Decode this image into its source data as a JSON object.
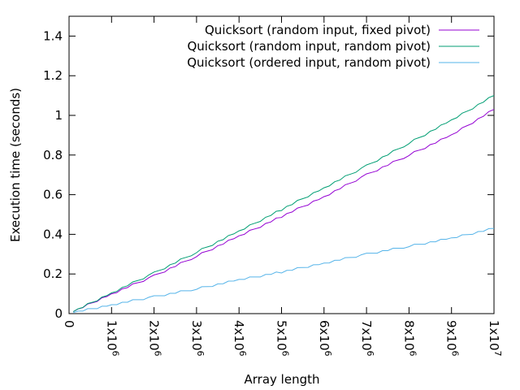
{
  "chart_data": {
    "type": "line",
    "title": "",
    "xlabel": "Array length",
    "ylabel": "Execution time (seconds)",
    "xlim": [
      0,
      10000000
    ],
    "ylim": [
      0,
      1.5
    ],
    "grid": false,
    "legend_position": "top-right",
    "y_ticks": [
      {
        "value": 0,
        "label": "0"
      },
      {
        "value": 0.2,
        "label": "0.2"
      },
      {
        "value": 0.4,
        "label": "0.4"
      },
      {
        "value": 0.6,
        "label": "0.6"
      },
      {
        "value": 0.8,
        "label": "0.8"
      },
      {
        "value": 1.0,
        "label": "1"
      },
      {
        "value": 1.2,
        "label": "1.2"
      },
      {
        "value": 1.4,
        "label": "1.4"
      }
    ],
    "x_ticks": [
      {
        "value": 0,
        "mantissa": "0",
        "exponent": ""
      },
      {
        "value": 1000000,
        "mantissa": "1x10",
        "exponent": "6"
      },
      {
        "value": 2000000,
        "mantissa": "2x10",
        "exponent": "6"
      },
      {
        "value": 3000000,
        "mantissa": "3x10",
        "exponent": "6"
      },
      {
        "value": 4000000,
        "mantissa": "4x10",
        "exponent": "6"
      },
      {
        "value": 5000000,
        "mantissa": "5x10",
        "exponent": "6"
      },
      {
        "value": 6000000,
        "mantissa": "6x10",
        "exponent": "6"
      },
      {
        "value": 7000000,
        "mantissa": "7x10",
        "exponent": "6"
      },
      {
        "value": 8000000,
        "mantissa": "8x10",
        "exponent": "6"
      },
      {
        "value": 9000000,
        "mantissa": "9x10",
        "exponent": "6"
      },
      {
        "value": 10000000,
        "mantissa": "1x10",
        "exponent": "7"
      }
    ],
    "x": [
      100000,
      1000000,
      2000000,
      3000000,
      4000000,
      5000000,
      6000000,
      7000000,
      8000000,
      9000000,
      10000000
    ],
    "series": [
      {
        "name": "Quicksort (random input, fixed pivot)",
        "color": "#9400d3",
        "values": [
          0.01,
          0.1,
          0.19,
          0.29,
          0.39,
          0.49,
          0.59,
          0.7,
          0.8,
          0.9,
          1.03
        ]
      },
      {
        "name": "Quicksort (random input, random pivot)",
        "color": "#009e73",
        "values": [
          0.01,
          0.105,
          0.205,
          0.31,
          0.415,
          0.525,
          0.635,
          0.745,
          0.86,
          0.975,
          1.1
        ]
      },
      {
        "name": "Quicksort (ordered input, random pivot)",
        "color": "#56b4e9",
        "values": [
          0.005,
          0.045,
          0.085,
          0.125,
          0.17,
          0.21,
          0.255,
          0.3,
          0.34,
          0.38,
          0.43
        ]
      }
    ]
  }
}
